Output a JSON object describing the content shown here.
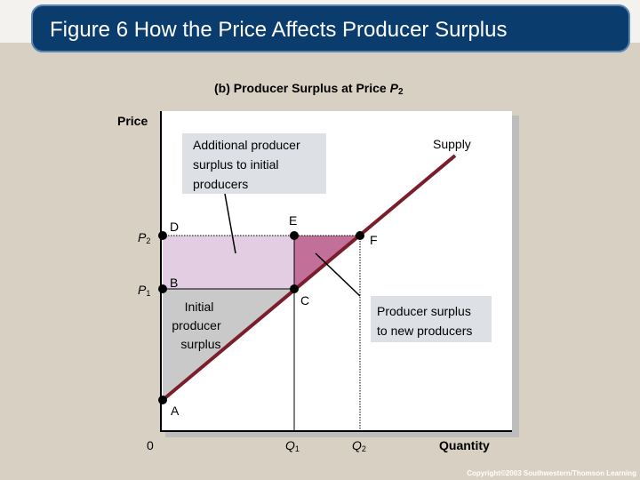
{
  "header": {
    "title": "Figure 6 How the Price Affects Producer Surplus"
  },
  "diagram": {
    "subtitle": {
      "text": "(b) Producer Surplus at Price",
      "var": "P",
      "sub": "2"
    },
    "y_axis_label": "Price",
    "x_axis_label": "Quantity",
    "origin": "0",
    "curve_label": "Supply",
    "prices": [
      {
        "var": "P",
        "sub": "2"
      },
      {
        "var": "P",
        "sub": "1"
      }
    ],
    "quantities": [
      {
        "var": "Q",
        "sub": "1"
      },
      {
        "var": "Q",
        "sub": "2"
      }
    ],
    "points": [
      "D",
      "E",
      "F",
      "B",
      "C",
      "A"
    ],
    "annotations": {
      "additional": [
        "Additional producer",
        "surplus to initial",
        "producers"
      ],
      "new": [
        "Producer surplus",
        "to new producers"
      ],
      "initial": [
        "Initial",
        "producer",
        "surplus"
      ]
    }
  },
  "footer": {
    "copyright": "Copyright©2003  Southwestern/Thomson Learning"
  }
}
